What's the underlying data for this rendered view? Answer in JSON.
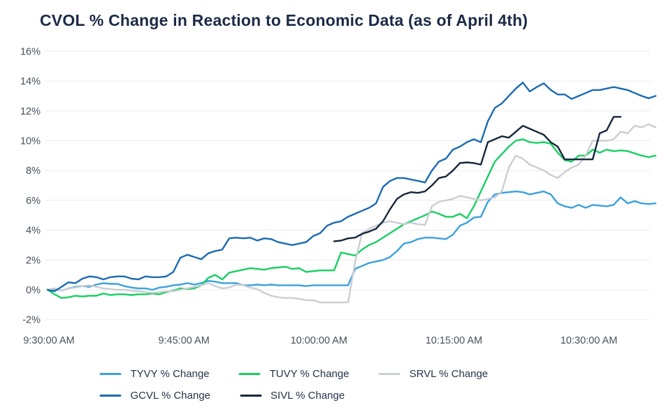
{
  "title": "CVOL % Change in Reaction to Economic Data (as of April 4th)",
  "chart_data": {
    "type": "line",
    "title": "CVOL % Change in Reaction to Economic Data (as of April 4th)",
    "x_axis": {
      "tick_labels": [
        "9:30:00 AM",
        "9:45:00 AM",
        "10:00:00 AM",
        "10:15:00 AM",
        "10:30:00 AM"
      ],
      "tick_seconds": [
        0,
        900,
        1800,
        2700,
        3600
      ],
      "total_seconds": 4054,
      "start_time": "9:30:00 AM",
      "end_time_approx": "10:37 AM"
    },
    "y_axis": {
      "min": -2,
      "max": 16,
      "tick_step": 2,
      "tick_labels": [
        "16%",
        "14%",
        "12%",
        "10%",
        "8%",
        "6%",
        "4%",
        "2%",
        "0%",
        "-2%"
      ],
      "format": "percent"
    },
    "grid": "horizontal",
    "legend_position": "bottom",
    "sample_interval_seconds": 46.6,
    "series": [
      {
        "name": "TYVY % Change",
        "color": "#3aa1dc",
        "start_index": 0,
        "values": [
          0.0,
          0.05,
          -0.05,
          0.1,
          0.2,
          0.25,
          0.2,
          0.35,
          0.45,
          0.4,
          0.4,
          0.25,
          0.15,
          0.1,
          0.1,
          0.0,
          0.15,
          0.2,
          0.3,
          0.35,
          0.45,
          0.35,
          0.45,
          0.6,
          0.55,
          0.45,
          0.45,
          0.45,
          0.3,
          0.3,
          0.35,
          0.3,
          0.35,
          0.3,
          0.3,
          0.3,
          0.3,
          0.25,
          0.3,
          0.3,
          0.3,
          0.3,
          0.3,
          0.3,
          1.4,
          1.6,
          1.8,
          1.9,
          2.0,
          2.2,
          2.6,
          3.1,
          3.2,
          3.4,
          3.5,
          3.5,
          3.45,
          3.4,
          3.7,
          4.3,
          4.5,
          4.85,
          4.9,
          5.9,
          6.4,
          6.5,
          6.55,
          6.6,
          6.55,
          6.4,
          6.5,
          6.6,
          6.4,
          5.8,
          5.6,
          5.5,
          5.7,
          5.5,
          5.7,
          5.65,
          5.6,
          5.7,
          6.2,
          5.8,
          5.95,
          5.8,
          5.75,
          5.8
        ]
      },
      {
        "name": "TUVY % Change",
        "color": "#17cf63",
        "start_index": 0,
        "values": [
          0.0,
          -0.3,
          -0.55,
          -0.5,
          -0.4,
          -0.45,
          -0.4,
          -0.4,
          -0.25,
          -0.35,
          -0.3,
          -0.3,
          -0.35,
          -0.3,
          -0.3,
          -0.25,
          -0.3,
          -0.15,
          -0.05,
          0.1,
          0.05,
          0.1,
          0.3,
          0.8,
          1.0,
          0.7,
          1.15,
          1.25,
          1.35,
          1.45,
          1.4,
          1.35,
          1.45,
          1.5,
          1.55,
          1.4,
          1.45,
          1.2,
          1.25,
          1.3,
          1.3,
          1.3,
          2.5,
          2.4,
          2.3,
          2.7,
          3.0,
          3.2,
          3.5,
          3.8,
          4.1,
          4.4,
          4.6,
          4.8,
          5.0,
          5.25,
          5.1,
          4.9,
          4.9,
          5.1,
          4.8,
          5.6,
          6.6,
          7.6,
          8.6,
          9.1,
          9.6,
          10.0,
          10.1,
          9.9,
          9.85,
          9.9,
          9.8,
          9.2,
          8.7,
          8.6,
          9.0,
          9.0,
          9.4,
          9.2,
          9.4,
          9.3,
          9.35,
          9.3,
          9.15,
          9.0,
          8.9,
          9.0
        ]
      },
      {
        "name": "SRVL % Change",
        "color": "#c9ced3",
        "start_index": 0,
        "values": [
          0.0,
          0.1,
          -0.05,
          0.1,
          0.15,
          0.25,
          0.3,
          0.2,
          0.1,
          0.05,
          0.0,
          0.0,
          -0.05,
          -0.1,
          -0.15,
          -0.2,
          -0.15,
          -0.1,
          -0.1,
          0.0,
          0.1,
          0.2,
          0.3,
          0.45,
          0.25,
          0.1,
          0.15,
          0.35,
          0.3,
          0.15,
          0.05,
          -0.2,
          -0.4,
          -0.5,
          -0.55,
          -0.55,
          -0.6,
          -0.7,
          -0.7,
          -0.85,
          -0.85,
          -0.85,
          -0.85,
          -0.85,
          1.85,
          3.8,
          4.1,
          4.3,
          4.5,
          4.6,
          4.5,
          4.4,
          4.5,
          4.4,
          4.35,
          5.6,
          5.9,
          6.0,
          6.1,
          6.3,
          6.2,
          6.1,
          6.0,
          6.1,
          6.2,
          6.6,
          8.2,
          9.0,
          8.8,
          8.4,
          8.2,
          8.0,
          7.7,
          7.5,
          7.9,
          8.2,
          8.4,
          9.0,
          10.0,
          10.0,
          10.0,
          10.1,
          10.6,
          10.5,
          11.0,
          10.9,
          11.1,
          10.9
        ]
      },
      {
        "name": "GCVL % Change",
        "color": "#1a6ab1",
        "start_index": 0,
        "values": [
          0.0,
          -0.1,
          0.2,
          0.5,
          0.45,
          0.75,
          0.9,
          0.85,
          0.7,
          0.85,
          0.9,
          0.9,
          0.75,
          0.7,
          0.9,
          0.85,
          0.85,
          0.9,
          1.2,
          2.15,
          2.35,
          2.2,
          2.05,
          2.45,
          2.6,
          2.7,
          3.45,
          3.5,
          3.45,
          3.5,
          3.3,
          3.45,
          3.4,
          3.2,
          3.1,
          3.0,
          3.1,
          3.2,
          3.6,
          3.8,
          4.3,
          4.5,
          4.6,
          4.9,
          5.1,
          5.3,
          5.5,
          5.8,
          6.9,
          7.3,
          7.5,
          7.5,
          7.4,
          7.3,
          7.2,
          8.0,
          8.6,
          8.8,
          9.4,
          9.6,
          9.9,
          10.1,
          9.9,
          11.3,
          12.2,
          12.5,
          13.0,
          13.5,
          13.9,
          13.3,
          13.6,
          13.85,
          13.4,
          13.1,
          13.1,
          12.8,
          13.0,
          13.2,
          13.4,
          13.4,
          13.5,
          13.6,
          13.5,
          13.4,
          13.2,
          13.0,
          12.85,
          13.0
        ]
      },
      {
        "name": "SIVL % Change",
        "color": "#16263c",
        "start_index": 41,
        "values": [
          3.25,
          3.3,
          3.45,
          3.5,
          3.75,
          3.9,
          4.1,
          4.6,
          5.4,
          6.1,
          6.4,
          6.55,
          6.5,
          6.6,
          7.0,
          7.5,
          7.6,
          8.0,
          8.5,
          8.55,
          8.5,
          8.4,
          9.9,
          10.1,
          10.3,
          10.2,
          10.6,
          11.0,
          10.8,
          10.6,
          10.4,
          9.9,
          9.6,
          8.75,
          8.75,
          8.75,
          8.75,
          8.75,
          10.5,
          10.7,
          11.6,
          11.6
        ]
      }
    ],
    "colors": {
      "grid": "#e9ebed",
      "axis_text": "#47525e",
      "title_text": "#1c2b45",
      "legend_text": "#25344a"
    }
  }
}
